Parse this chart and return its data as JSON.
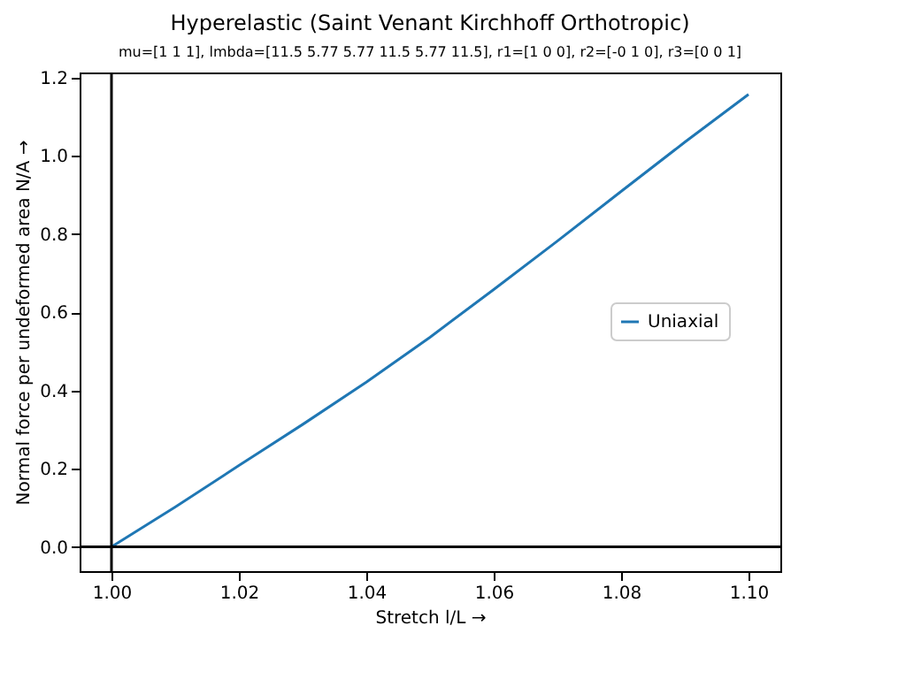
{
  "chart_data": {
    "type": "line",
    "title": "Hyperelastic (Saint Venant Kirchhoff Orthotropic)",
    "subtitle": "mu=[1 1 1], lmbda=[11.5 5.77 5.77 11.5 5.77 11.5], r1=[1 0 0], r2=[-0 1 0], r3=[0 0 1]",
    "xlabel": "Stretch l/L  →",
    "ylabel": "Normal force per undeformed area N/A  →",
    "x": [
      1.0,
      1.01,
      1.02,
      1.03,
      1.04,
      1.05,
      1.06,
      1.07,
      1.08,
      1.09,
      1.1
    ],
    "series": [
      {
        "name": "Uniaxial",
        "color": "#1f77b4",
        "values": [
          0.0,
          0.102,
          0.208,
          0.313,
          0.421,
          0.536,
          0.658,
          0.782,
          0.909,
          1.035,
          1.157
        ]
      }
    ],
    "xlim": [
      0.995,
      1.105
    ],
    "xticks": [
      {
        "value": 1.0,
        "label": "1.00"
      },
      {
        "value": 1.02,
        "label": "1.02"
      },
      {
        "value": 1.04,
        "label": "1.04"
      },
      {
        "value": 1.06,
        "label": "1.06"
      },
      {
        "value": 1.08,
        "label": "1.08"
      },
      {
        "value": 1.1,
        "label": "1.10"
      }
    ],
    "ylim": [
      -0.062,
      1.213
    ],
    "yticks": [
      {
        "value": 0.0,
        "label": "0.0"
      },
      {
        "value": 0.2,
        "label": "0.2"
      },
      {
        "value": 0.4,
        "label": "0.4"
      },
      {
        "value": 0.6,
        "label": "0.6"
      },
      {
        "value": 0.8,
        "label": "0.8"
      },
      {
        "value": 1.0,
        "label": "1.0"
      },
      {
        "value": 1.2,
        "label": "1.2"
      }
    ],
    "ref_lines": [
      {
        "axis": "x",
        "value": 1.0,
        "color": "#000000"
      },
      {
        "axis": "y",
        "value": 0.0,
        "color": "#000000"
      }
    ],
    "legend": "right",
    "grid": false,
    "marker": "none",
    "line_style": "solid"
  }
}
